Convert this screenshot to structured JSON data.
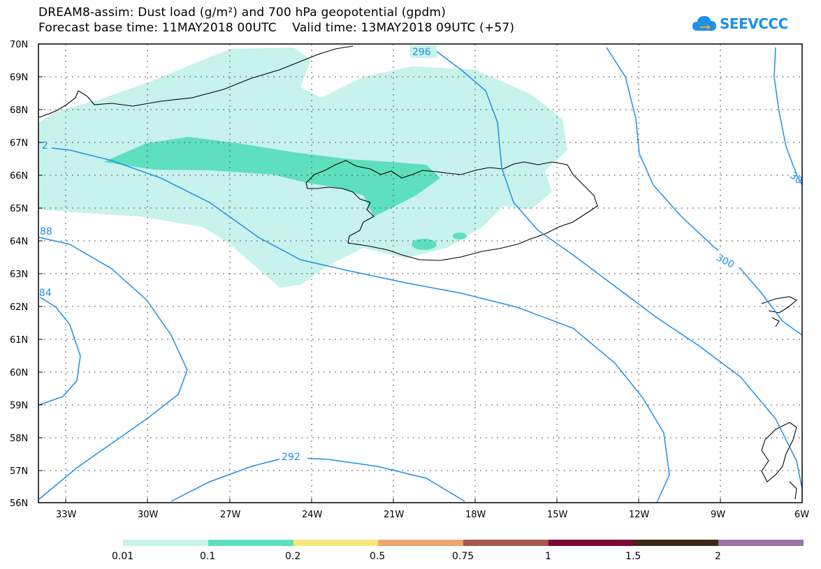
{
  "title": {
    "line1": "DREAM8-assim: Dust load (g/m²) and 700 hPa geopotential (gpdm)",
    "line2": "Forecast base time: 11MAY2018 00UTC    Valid time: 13MAY2018 09UTC (+57)"
  },
  "logo": {
    "text": "SEEVCCC",
    "icon": "cloud-icon",
    "color": "#1e90e8"
  },
  "map": {
    "lat_range": [
      56,
      70
    ],
    "lon_range": [
      -34.5,
      -6
    ],
    "lat_ticks": [
      "56N",
      "57N",
      "58N",
      "59N",
      "60N",
      "61N",
      "62N",
      "63N",
      "64N",
      "65N",
      "66N",
      "67N",
      "68N",
      "69N",
      "70N"
    ],
    "lon_ticks": [
      "33W",
      "30W",
      "27W",
      "24W",
      "21W",
      "18W",
      "15W",
      "12W",
      "9W",
      "6W"
    ],
    "grid": "dotted",
    "contour_color": "#1e90e8",
    "contour_labels": [
      "296",
      "300",
      "292",
      "88",
      "84",
      "2",
      "30"
    ]
  },
  "legend": {
    "colors": [
      "#c8f2ec",
      "#5ee0bf",
      "#f5e97a",
      "#f0a472",
      "#a8574f",
      "#7a0a30",
      "#3d2a14",
      "#9a72a5"
    ],
    "labels": [
      "0.01",
      "0.1",
      "0.2",
      "0.5",
      "0.75",
      "1",
      "1.5",
      "2"
    ]
  }
}
